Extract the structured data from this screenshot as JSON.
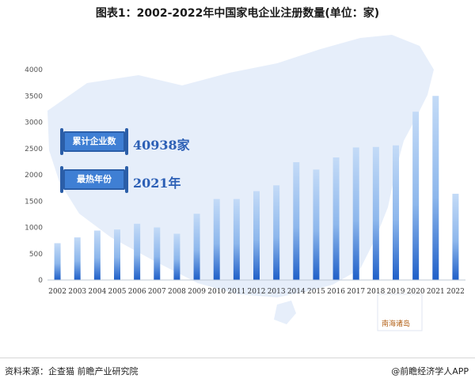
{
  "title": "图表1：2002-2022年中国家电企业注册数量(单位：家)",
  "highlights": [
    {
      "label": "累计企业数",
      "value": "40938家"
    },
    {
      "label": "最热年份",
      "value": "2021年"
    }
  ],
  "map_label": "南海诸岛",
  "footer": {
    "source": "资料来源：企查猫 前瞻产业研究院",
    "copyright": "@前瞻经济学人APP"
  },
  "colors": {
    "bar_top": "#b9d3f5",
    "bar_bottom": "#1f5fc8",
    "map_fill": "#e6eefa",
    "accent": "#2c5fb5"
  },
  "chart_data": {
    "type": "bar",
    "categories": [
      "2002",
      "2003",
      "2004",
      "2005",
      "2006",
      "2007",
      "2008",
      "2009",
      "2010",
      "2011",
      "2012",
      "2013",
      "2014",
      "2015",
      "2016",
      "2017",
      "2018",
      "2019",
      "2020",
      "2021",
      "2022"
    ],
    "values": [
      700,
      810,
      940,
      960,
      1070,
      1000,
      880,
      1260,
      1540,
      1540,
      1690,
      1800,
      2240,
      2100,
      2330,
      2520,
      2530,
      2560,
      3200,
      3500,
      1640
    ],
    "title": "图表1：2002-2022年中国家电企业注册数量(单位：家)",
    "xlabel": "",
    "ylabel": "",
    "ylim": [
      0,
      4000
    ],
    "yticks": [
      0,
      500,
      1000,
      1500,
      2000,
      2500,
      3000,
      3500,
      4000
    ],
    "grid": false,
    "legend": "none"
  }
}
